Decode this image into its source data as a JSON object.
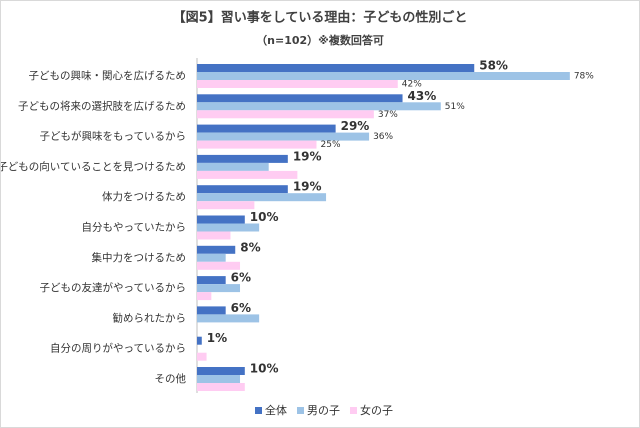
{
  "chart_data": {
    "type": "bar",
    "orientation": "horizontal",
    "title": "【図5】習い事をしている理由：子どもの性別ごと",
    "subtitle": "（n=102）※複数回答可",
    "categories": [
      "子どもの興味・関心を広げるため",
      "子どもの将来の選択肢を広げるため",
      "子どもが興味をもっているから",
      "子どもの向いていることを見つけるため",
      "体力をつけるため",
      "自分もやっていたから",
      "集中力をつけるため",
      "子どもの友達がやっているから",
      "勧められたから",
      "自分の周りがやっているから",
      "その他"
    ],
    "series": [
      {
        "name": "全体",
        "color": "#4472c4",
        "values": [
          58,
          43,
          29,
          19,
          19,
          10,
          8,
          6,
          6,
          1,
          10
        ],
        "value_labels": [
          "58%",
          "43%",
          "29%",
          "19%",
          "19%",
          "10%",
          "8%",
          "6%",
          "6%",
          "1%",
          "10%"
        ],
        "label_colors": [
          "#e8388a",
          "#e8388a",
          "#e8388a",
          "#333333",
          "#333333",
          "#333333",
          "#333333",
          "#333333",
          "#333333",
          "#333333",
          "#333333"
        ]
      },
      {
        "name": "男の子",
        "color": "#9dc3e6",
        "values": [
          78,
          51,
          36,
          15,
          27,
          13,
          6,
          9,
          13,
          0,
          9
        ],
        "value_labels": [
          "78%",
          "51%",
          "36%",
          null,
          null,
          null,
          null,
          null,
          null,
          null,
          null
        ]
      },
      {
        "name": "女の子",
        "color": "#ffccf2",
        "values": [
          42,
          37,
          25,
          21,
          12,
          7,
          9,
          3,
          0,
          2,
          10
        ],
        "value_labels": [
          "42%",
          "37%",
          "25%",
          null,
          null,
          null,
          null,
          null,
          null,
          null,
          null
        ]
      }
    ],
    "xlim": [
      0,
      90
    ],
    "legend": "bottom"
  }
}
